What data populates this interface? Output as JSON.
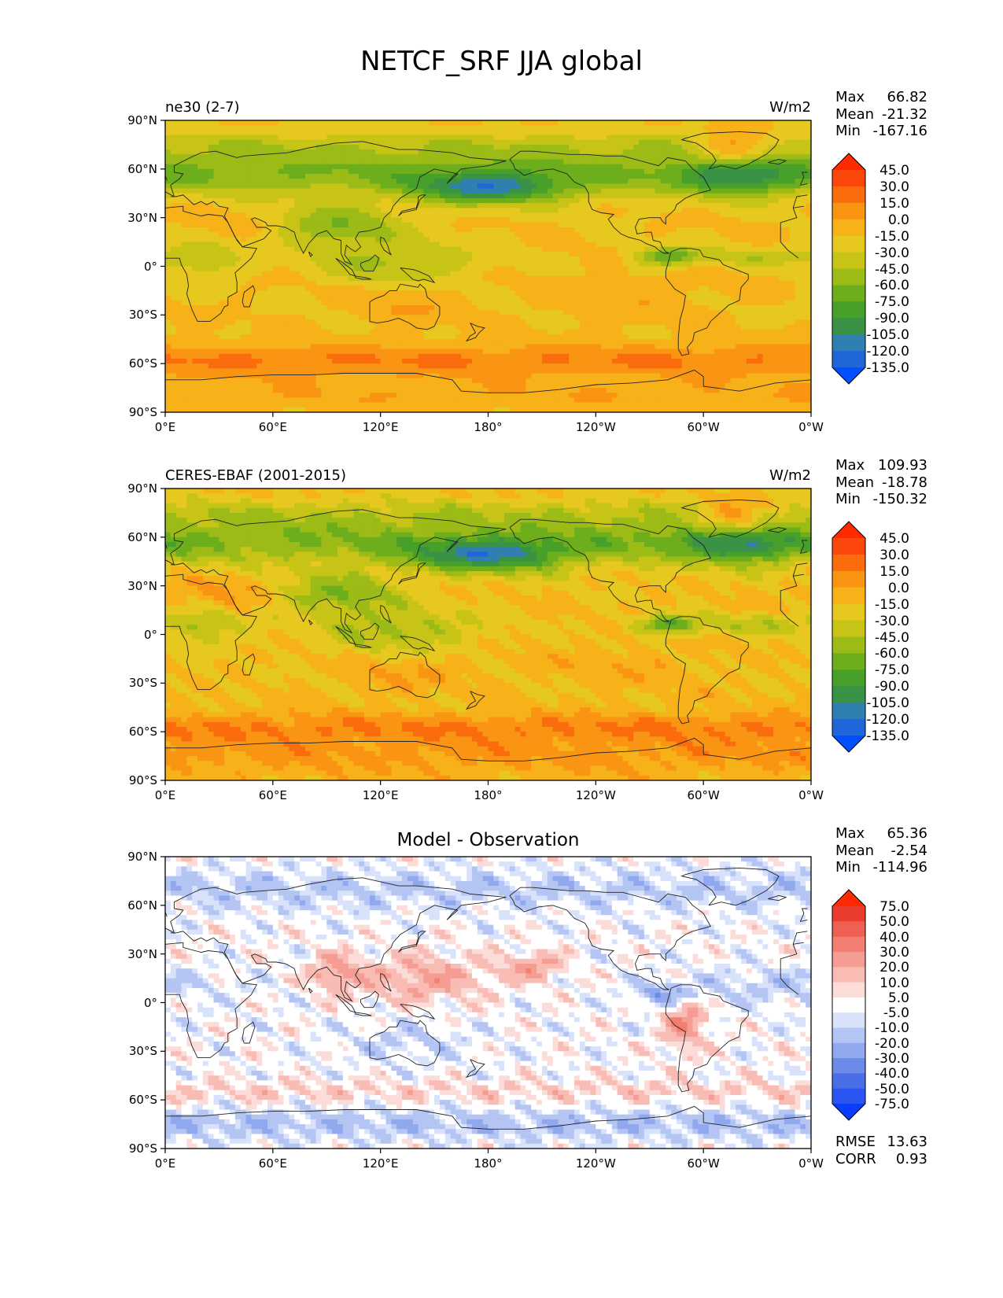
{
  "figure": {
    "title": "NETCF_SRF JJA global",
    "x_ticks": [
      "0°E",
      "60°E",
      "120°E",
      "180°",
      "120°W",
      "60°W",
      "0°W"
    ],
    "y_ticks": [
      "90°N",
      "60°N",
      "30°N",
      "0°",
      "30°S",
      "60°S",
      "90°S"
    ]
  },
  "panels": [
    {
      "id": "test",
      "left_label": "ne30 (2-7)",
      "right_label": "W/m2",
      "center_title": "",
      "stats": [
        {
          "name": "Max",
          "value": "66.82"
        },
        {
          "name": "Mean",
          "value": "-21.32"
        },
        {
          "name": "Min",
          "value": "-167.16"
        }
      ],
      "colorbar": {
        "labels": [
          "45.0",
          "30.0",
          "15.0",
          "0.0",
          "-15.0",
          "-30.0",
          "-45.0",
          "-60.0",
          "-75.0",
          "-90.0",
          "-105.0",
          "-120.0",
          "-135.0"
        ]
      }
    },
    {
      "id": "reference",
      "left_label": "CERES-EBAF (2001-2015)",
      "right_label": "W/m2",
      "center_title": "",
      "stats": [
        {
          "name": "Max",
          "value": "109.93"
        },
        {
          "name": "Mean",
          "value": "-18.78"
        },
        {
          "name": "Min",
          "value": "-150.32"
        }
      ],
      "colorbar": {
        "labels": [
          "45.0",
          "30.0",
          "15.0",
          "0.0",
          "-15.0",
          "-30.0",
          "-45.0",
          "-60.0",
          "-75.0",
          "-90.0",
          "-105.0",
          "-120.0",
          "-135.0"
        ]
      }
    },
    {
      "id": "difference",
      "left_label": "",
      "right_label": "",
      "center_title": "Model - Observation",
      "stats": [
        {
          "name": "Max",
          "value": "65.36"
        },
        {
          "name": "Mean",
          "value": "-2.54"
        },
        {
          "name": "Min",
          "value": "-114.96"
        }
      ],
      "extra_stats": [
        {
          "name": "RMSE",
          "value": "13.63"
        },
        {
          "name": "CORR",
          "value": "0.93"
        }
      ],
      "colorbar": {
        "labels": [
          "75.0",
          "50.0",
          "40.0",
          "30.0",
          "20.0",
          "10.0",
          "5.0",
          "-5.0",
          "-10.0",
          "-20.0",
          "-30.0",
          "-40.0",
          "-50.0",
          "-75.0"
        ]
      }
    }
  ],
  "chart_data": [
    {
      "type": "heatmap",
      "title": "ne30 (2-7)",
      "units": "W/m2",
      "projection": "equirectangular, global",
      "xlim": [
        0,
        360
      ],
      "ylim": [
        -90,
        90
      ],
      "levels": [
        -135,
        -120,
        -105,
        -90,
        -75,
        -60,
        -45,
        -30,
        -15,
        0,
        15,
        30,
        45
      ],
      "max": 66.82,
      "mean": -21.32,
      "min": -167.16,
      "colors": [
        "#0050ff",
        "#1f66d9",
        "#2f7fb0",
        "#3a9247",
        "#47a02a",
        "#6cae1c",
        "#9cbb17",
        "#c8c417",
        "#e6c81e",
        "#f7b21a",
        "#fa9514",
        "#fb6c0d",
        "#fb460c",
        "#ff2a00"
      ],
      "zonal_mean_profile": [
        {
          "lat": 80,
          "value": -30
        },
        {
          "lat": 60,
          "value": -60
        },
        {
          "lat": 45,
          "value": -75
        },
        {
          "lat": 30,
          "value": -35
        },
        {
          "lat": 15,
          "value": -25
        },
        {
          "lat": 5,
          "value": -55
        },
        {
          "lat": -5,
          "value": -35
        },
        {
          "lat": -20,
          "value": -15
        },
        {
          "lat": -35,
          "value": 0
        },
        {
          "lat": -50,
          "value": 20
        },
        {
          "lat": -60,
          "value": 45
        },
        {
          "lat": -75,
          "value": 15
        },
        {
          "lat": -88,
          "value": 10
        }
      ]
    },
    {
      "type": "heatmap",
      "title": "CERES-EBAF (2001-2015)",
      "units": "W/m2",
      "projection": "equirectangular, global",
      "xlim": [
        0,
        360
      ],
      "ylim": [
        -90,
        90
      ],
      "levels": [
        -135,
        -120,
        -105,
        -90,
        -75,
        -60,
        -45,
        -30,
        -15,
        0,
        15,
        30,
        45
      ],
      "max": 109.93,
      "mean": -18.78,
      "min": -150.32,
      "zonal_mean_profile": [
        {
          "lat": 80,
          "value": -25
        },
        {
          "lat": 60,
          "value": -55
        },
        {
          "lat": 45,
          "value": -70
        },
        {
          "lat": 30,
          "value": -25
        },
        {
          "lat": 15,
          "value": -20
        },
        {
          "lat": 5,
          "value": -50
        },
        {
          "lat": -5,
          "value": -30
        },
        {
          "lat": -20,
          "value": -10
        },
        {
          "lat": -35,
          "value": 5
        },
        {
          "lat": -50,
          "value": 20
        },
        {
          "lat": -60,
          "value": 45
        },
        {
          "lat": -75,
          "value": 40
        },
        {
          "lat": -88,
          "value": 15
        }
      ]
    },
    {
      "type": "heatmap",
      "title": "Model - Observation",
      "units": "W/m2",
      "projection": "equirectangular, global",
      "xlim": [
        0,
        360
      ],
      "ylim": [
        -90,
        90
      ],
      "levels": [
        -75,
        -50,
        -40,
        -30,
        -20,
        -10,
        -5,
        5,
        10,
        20,
        30,
        40,
        50,
        75
      ],
      "max": 65.36,
      "mean": -2.54,
      "min": -114.96,
      "rmse": 13.63,
      "corr": 0.93,
      "colors": [
        "#0a3cff",
        "#2b55f0",
        "#4a6ee6",
        "#6c8ae8",
        "#90a8ee",
        "#b4c5f4",
        "#d8e2fa",
        "#ffffff",
        "#fcdcd8",
        "#f8bcb4",
        "#f59d92",
        "#f27f72",
        "#ef5f52",
        "#eb3c30",
        "#ff2a00"
      ]
    }
  ]
}
